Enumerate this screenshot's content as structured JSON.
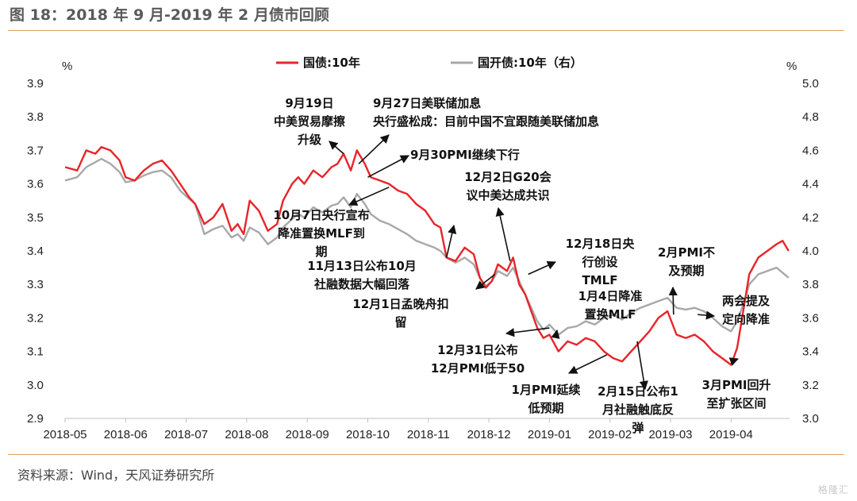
{
  "figure_title": "图 18：2018 年 9 月-2019 年 2 月债市回顾",
  "source": "资料来源：Wind，天风证券研究所",
  "watermark": "格隆汇",
  "chart_data": {
    "type": "line",
    "title": "",
    "left_axis_unit": "%",
    "right_axis_unit": "%",
    "ylim_left": [
      2.9,
      3.9
    ],
    "ylim_right": [
      3.0,
      5.0
    ],
    "yticks_left": [
      "3.9",
      "3.8",
      "3.7",
      "3.6",
      "3.5",
      "3.4",
      "3.3",
      "3.2",
      "3.1",
      "3.0",
      "2.9"
    ],
    "yticks_right": [
      "5.0",
      "4.8",
      "4.6",
      "4.4",
      "4.2",
      "4.0",
      "3.8",
      "3.6",
      "3.4",
      "3.2",
      "3.0"
    ],
    "x_ticks": [
      "2018-05",
      "2018-06",
      "2018-07",
      "2018-08",
      "2018-09",
      "2018-10",
      "2018-11",
      "2018-12",
      "2019-01",
      "2019-02",
      "2019-03",
      "2019-04"
    ],
    "grid": false,
    "legend_position": "top-center",
    "series": [
      {
        "name": "国债:10年",
        "axis": "left",
        "color": "#e8242a",
        "points": [
          [
            0.0,
            3.65
          ],
          [
            0.2,
            3.64
          ],
          [
            0.35,
            3.7
          ],
          [
            0.5,
            3.69
          ],
          [
            0.6,
            3.71
          ],
          [
            0.75,
            3.7
          ],
          [
            0.9,
            3.67
          ],
          [
            1.0,
            3.62
          ],
          [
            1.15,
            3.61
          ],
          [
            1.3,
            3.64
          ],
          [
            1.45,
            3.66
          ],
          [
            1.6,
            3.67
          ],
          [
            1.75,
            3.64
          ],
          [
            1.9,
            3.6
          ],
          [
            2.05,
            3.56
          ],
          [
            2.15,
            3.54
          ],
          [
            2.3,
            3.48
          ],
          [
            2.45,
            3.5
          ],
          [
            2.6,
            3.54
          ],
          [
            2.75,
            3.46
          ],
          [
            2.85,
            3.48
          ],
          [
            2.95,
            3.45
          ],
          [
            3.05,
            3.55
          ],
          [
            3.2,
            3.52
          ],
          [
            3.35,
            3.46
          ],
          [
            3.5,
            3.48
          ],
          [
            3.6,
            3.55
          ],
          [
            3.75,
            3.6
          ],
          [
            3.85,
            3.62
          ],
          [
            3.95,
            3.6
          ],
          [
            4.1,
            3.64
          ],
          [
            4.25,
            3.62
          ],
          [
            4.4,
            3.65
          ],
          [
            4.5,
            3.66
          ],
          [
            4.6,
            3.69
          ],
          [
            4.72,
            3.64
          ],
          [
            4.82,
            3.7
          ],
          [
            4.95,
            3.66
          ],
          [
            5.05,
            3.62
          ],
          [
            5.2,
            3.61
          ],
          [
            5.35,
            3.6
          ],
          [
            5.5,
            3.58
          ],
          [
            5.65,
            3.57
          ],
          [
            5.8,
            3.54
          ],
          [
            5.95,
            3.52
          ],
          [
            6.1,
            3.48
          ],
          [
            6.2,
            3.47
          ],
          [
            6.3,
            3.38
          ],
          [
            6.45,
            3.37
          ],
          [
            6.6,
            3.41
          ],
          [
            6.75,
            3.39
          ],
          [
            6.85,
            3.32
          ],
          [
            6.95,
            3.29
          ],
          [
            7.05,
            3.31
          ],
          [
            7.15,
            3.36
          ],
          [
            7.3,
            3.34
          ],
          [
            7.4,
            3.38
          ],
          [
            7.5,
            3.3
          ],
          [
            7.6,
            3.27
          ],
          [
            7.7,
            3.22
          ],
          [
            7.8,
            3.17
          ],
          [
            7.9,
            3.14
          ],
          [
            8.0,
            3.15
          ],
          [
            8.15,
            3.1
          ],
          [
            8.3,
            3.13
          ],
          [
            8.45,
            3.12
          ],
          [
            8.6,
            3.14
          ],
          [
            8.75,
            3.13
          ],
          [
            8.9,
            3.1
          ],
          [
            9.05,
            3.08
          ],
          [
            9.2,
            3.07
          ],
          [
            9.35,
            3.1
          ],
          [
            9.5,
            3.13
          ],
          [
            9.65,
            3.16
          ],
          [
            9.8,
            3.2
          ],
          [
            9.95,
            3.22
          ],
          [
            10.1,
            3.15
          ],
          [
            10.25,
            3.14
          ],
          [
            10.4,
            3.15
          ],
          [
            10.55,
            3.13
          ],
          [
            10.7,
            3.1
          ],
          [
            10.85,
            3.08
          ],
          [
            11.0,
            3.06
          ],
          [
            11.1,
            3.11
          ],
          [
            11.2,
            3.22
          ],
          [
            11.3,
            3.33
          ],
          [
            11.45,
            3.38
          ],
          [
            11.6,
            3.4
          ],
          [
            11.75,
            3.42
          ],
          [
            11.85,
            3.43
          ],
          [
            11.95,
            3.4
          ]
        ]
      },
      {
        "name": "国开债:10年（右）",
        "axis": "right",
        "color": "#a8a8a8",
        "points": [
          [
            0.0,
            4.42
          ],
          [
            0.2,
            4.44
          ],
          [
            0.35,
            4.5
          ],
          [
            0.5,
            4.53
          ],
          [
            0.6,
            4.55
          ],
          [
            0.75,
            4.52
          ],
          [
            0.9,
            4.47
          ],
          [
            1.0,
            4.41
          ],
          [
            1.15,
            4.42
          ],
          [
            1.3,
            4.45
          ],
          [
            1.45,
            4.47
          ],
          [
            1.6,
            4.48
          ],
          [
            1.75,
            4.44
          ],
          [
            1.9,
            4.36
          ],
          [
            2.05,
            4.31
          ],
          [
            2.15,
            4.28
          ],
          [
            2.3,
            4.1
          ],
          [
            2.45,
            4.13
          ],
          [
            2.6,
            4.15
          ],
          [
            2.75,
            4.08
          ],
          [
            2.85,
            4.1
          ],
          [
            2.95,
            4.06
          ],
          [
            3.05,
            4.14
          ],
          [
            3.2,
            4.11
          ],
          [
            3.35,
            4.04
          ],
          [
            3.5,
            4.08
          ],
          [
            3.6,
            4.14
          ],
          [
            3.75,
            4.19
          ],
          [
            3.85,
            4.22
          ],
          [
            3.95,
            4.2
          ],
          [
            4.1,
            4.26
          ],
          [
            4.25,
            4.23
          ],
          [
            4.4,
            4.27
          ],
          [
            4.5,
            4.28
          ],
          [
            4.6,
            4.32
          ],
          [
            4.72,
            4.26
          ],
          [
            4.82,
            4.34
          ],
          [
            4.95,
            4.28
          ],
          [
            5.05,
            4.22
          ],
          [
            5.2,
            4.18
          ],
          [
            5.35,
            4.16
          ],
          [
            5.5,
            4.13
          ],
          [
            5.65,
            4.1
          ],
          [
            5.8,
            4.06
          ],
          [
            5.95,
            4.04
          ],
          [
            6.1,
            4.02
          ],
          [
            6.2,
            4.0
          ],
          [
            6.3,
            3.96
          ],
          [
            6.45,
            3.93
          ],
          [
            6.6,
            3.96
          ],
          [
            6.75,
            3.92
          ],
          [
            6.85,
            3.84
          ],
          [
            6.95,
            3.79
          ],
          [
            7.05,
            3.82
          ],
          [
            7.15,
            3.88
          ],
          [
            7.3,
            3.85
          ],
          [
            7.4,
            3.9
          ],
          [
            7.5,
            3.82
          ],
          [
            7.6,
            3.74
          ],
          [
            7.7,
            3.66
          ],
          [
            7.8,
            3.58
          ],
          [
            7.9,
            3.53
          ],
          [
            8.0,
            3.56
          ],
          [
            8.15,
            3.5
          ],
          [
            8.3,
            3.54
          ],
          [
            8.45,
            3.55
          ],
          [
            8.6,
            3.58
          ],
          [
            8.75,
            3.56
          ],
          [
            8.9,
            3.6
          ],
          [
            9.05,
            3.62
          ],
          [
            9.2,
            3.59
          ],
          [
            9.35,
            3.63
          ],
          [
            9.5,
            3.66
          ],
          [
            9.65,
            3.68
          ],
          [
            9.8,
            3.7
          ],
          [
            9.95,
            3.72
          ],
          [
            10.1,
            3.66
          ],
          [
            10.25,
            3.65
          ],
          [
            10.4,
            3.66
          ],
          [
            10.55,
            3.64
          ],
          [
            10.7,
            3.6
          ],
          [
            10.85,
            3.55
          ],
          [
            11.0,
            3.52
          ],
          [
            11.1,
            3.58
          ],
          [
            11.2,
            3.68
          ],
          [
            11.3,
            3.8
          ],
          [
            11.45,
            3.86
          ],
          [
            11.6,
            3.88
          ],
          [
            11.75,
            3.9
          ],
          [
            11.85,
            3.87
          ],
          [
            11.95,
            3.84
          ]
        ]
      }
    ],
    "annotations": [
      {
        "lines": [
          "9月19日",
          "中美贸易摩擦",
          "升级"
        ],
        "point": [
          4.6,
          3.69
        ]
      },
      {
        "lines": [
          "9月27日美联储加息",
          "央行盛松成：目前中国不宜跟随美联储加息"
        ],
        "point": [
          4.85,
          3.66
        ]
      },
      {
        "lines": [
          "9月30PMI继续下行"
        ],
        "point": [
          5.0,
          3.62
        ]
      },
      {
        "lines": [
          "10月7日央行宣布",
          "降准置换MLF到",
          "期"
        ],
        "point": [
          5.35,
          3.59
        ]
      },
      {
        "lines": [
          "11月13日公布10月",
          "社融数据大幅回落"
        ],
        "point": [
          6.3,
          3.38
        ]
      },
      {
        "lines": [
          "12月2日G20会",
          "议中美达成共识"
        ],
        "point": [
          7.35,
          3.37
        ]
      },
      {
        "lines": [
          "12月1日孟晚舟扣",
          "留"
        ],
        "point": [
          7.1,
          3.33
        ]
      },
      {
        "lines": [
          "12月18日央",
          "行创设",
          "TMLF"
        ],
        "point": [
          7.65,
          3.33
        ]
      },
      {
        "lines": [
          "12月31日公布",
          "12月PMI低于50"
        ],
        "point": [
          8.0,
          3.17
        ]
      },
      {
        "lines": [
          "1月4日降准",
          "置换MLF"
        ],
        "point": [
          8.1,
          3.14
        ]
      },
      {
        "lines": [
          "1月PMI延续",
          "低预期"
        ],
        "point": [
          8.95,
          3.09
        ]
      },
      {
        "lines": [
          "2月15日公布1",
          "月社融触底反",
          "弹"
        ],
        "point": [
          9.45,
          3.13
        ]
      },
      {
        "lines": [
          "2月PMI不",
          "及预期"
        ],
        "point": [
          10.05,
          3.21
        ]
      },
      {
        "lines": [
          "两会提及",
          "定向降准"
        ],
        "point": [
          10.45,
          3.21
        ]
      },
      {
        "lines": [
          "3月PMI回升",
          "至扩张区间"
        ],
        "point": [
          11.0,
          3.07
        ]
      }
    ]
  }
}
